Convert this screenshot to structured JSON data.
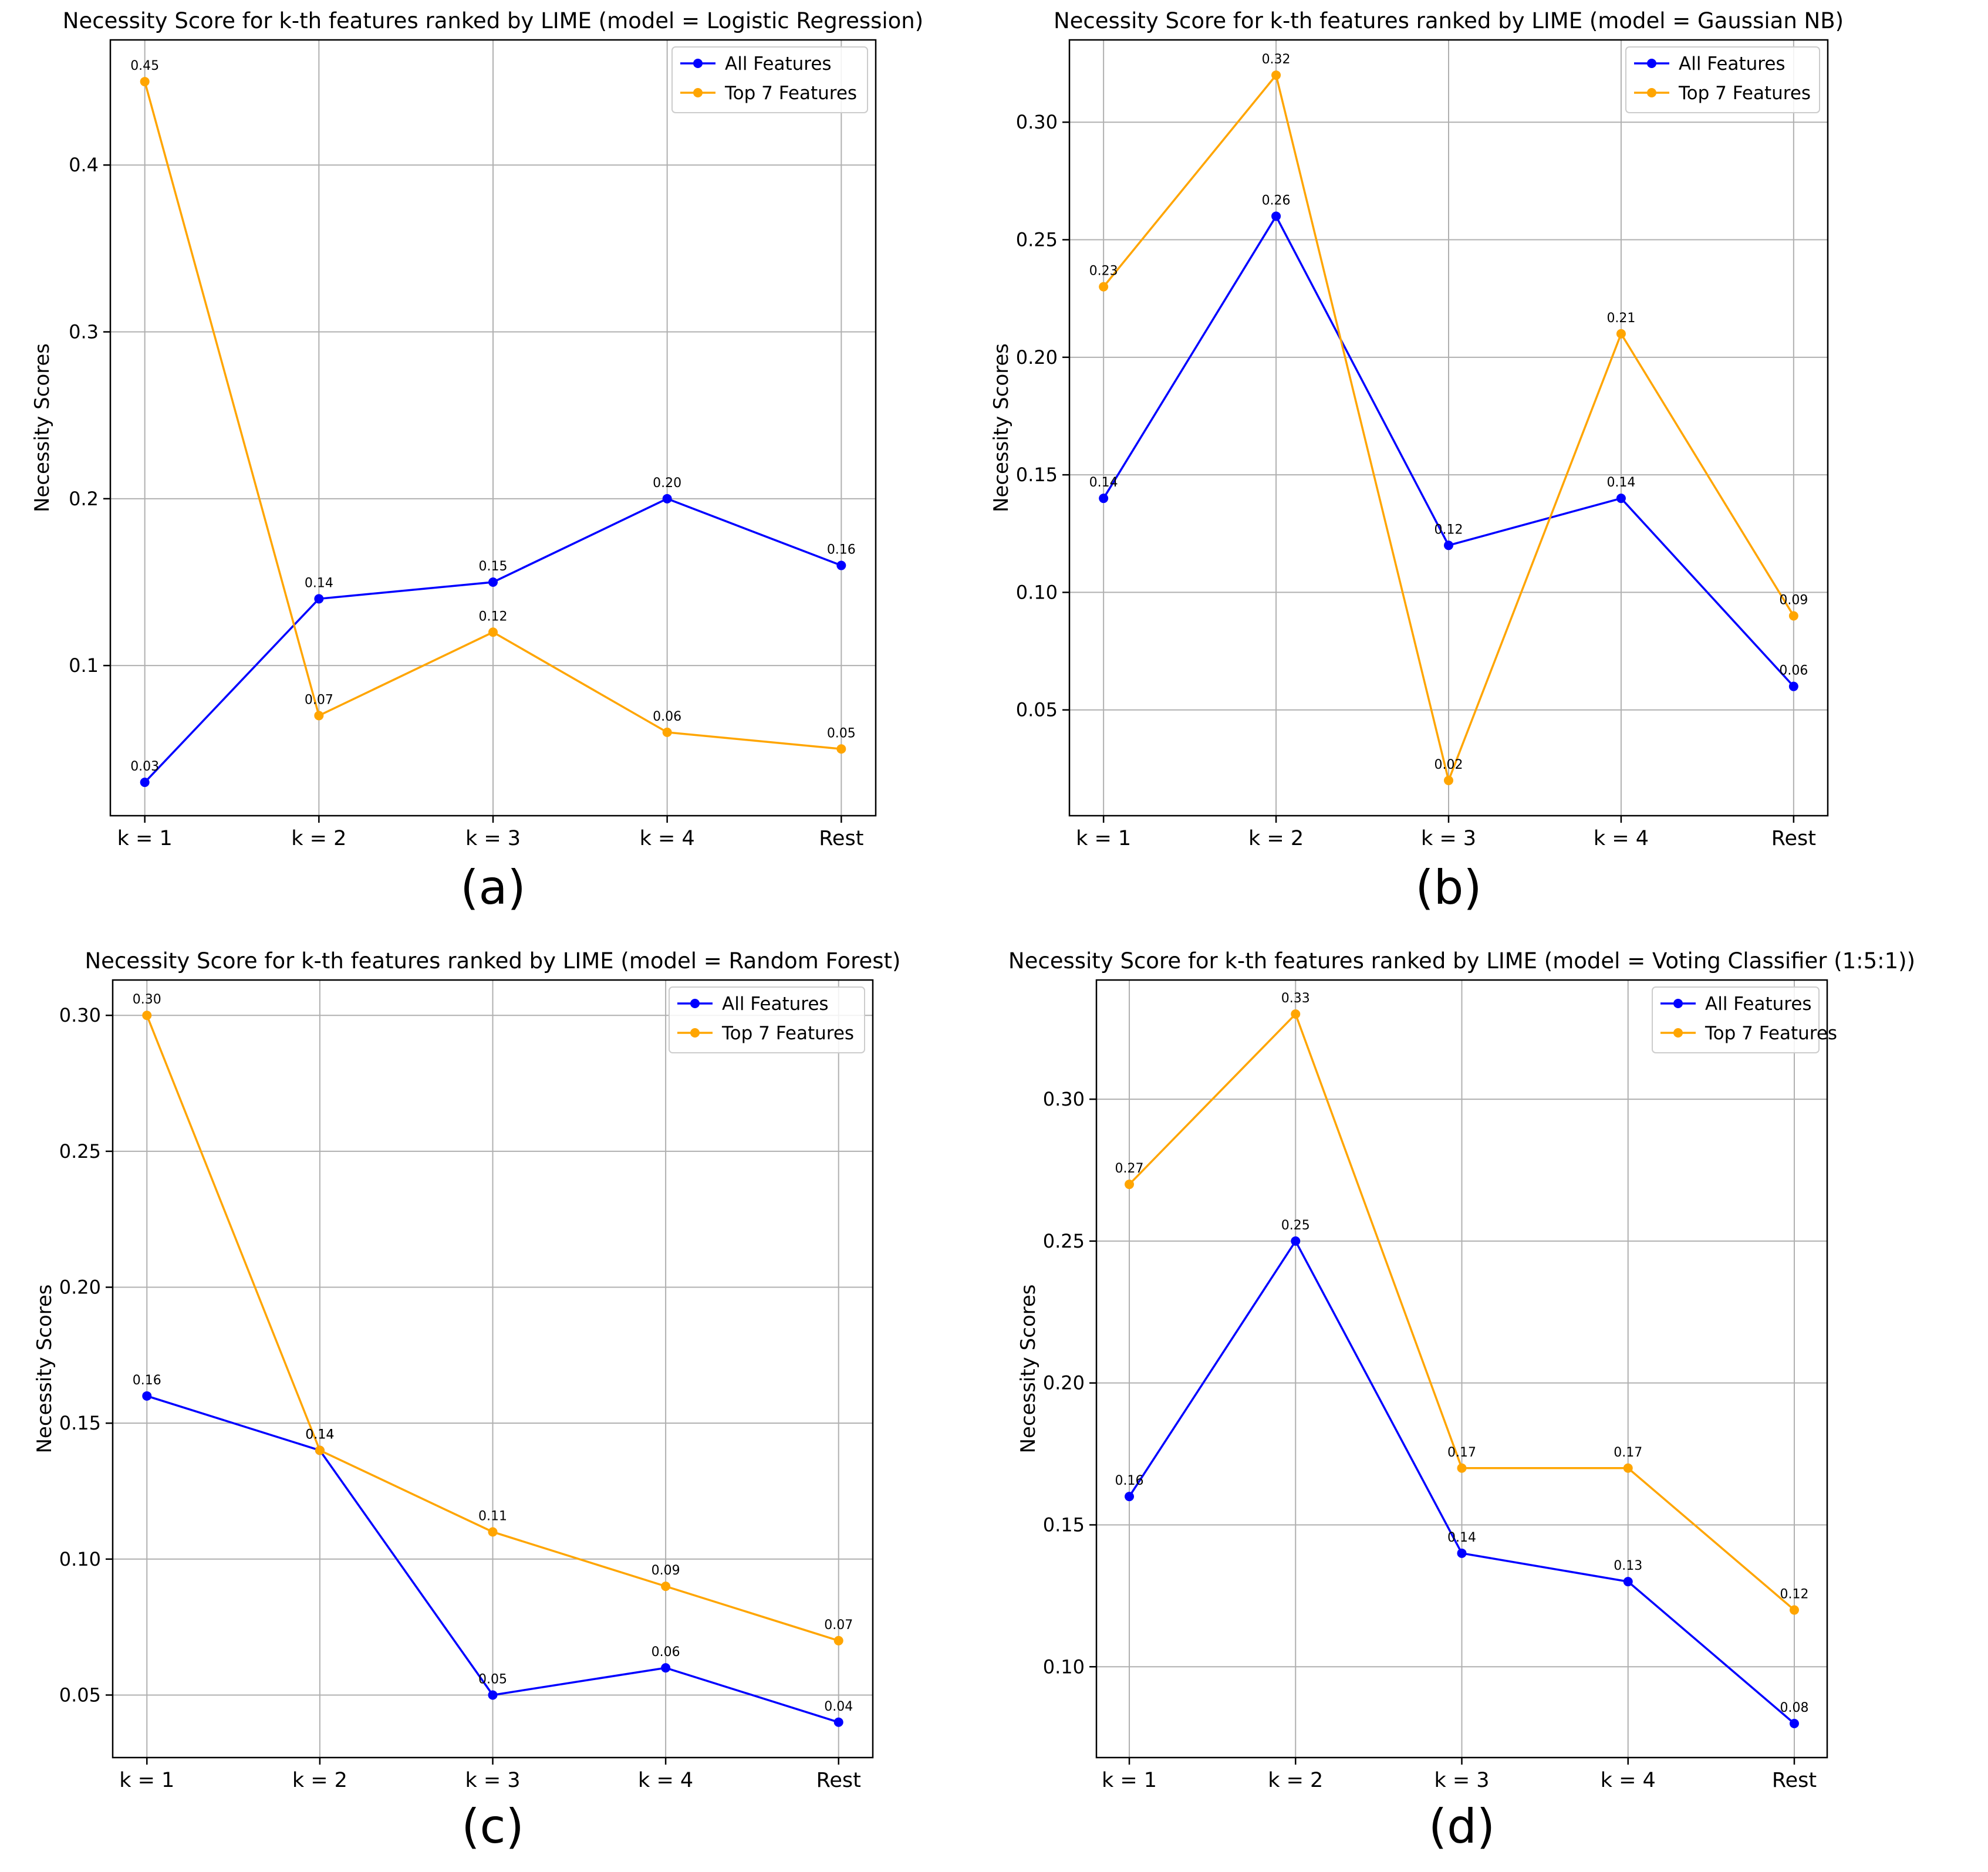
{
  "chart_data": [
    {
      "type": "line",
      "panel_label": "(a)",
      "title": "Necessity Score for k-th features ranked by LIME (model = Logistic Regression)",
      "xlabel": "",
      "ylabel": "Necessity Scores",
      "categories": [
        "k = 1",
        "k = 2",
        "k = 3",
        "k = 4",
        "Rest"
      ],
      "ylim": [
        0.01,
        0.475
      ],
      "yticks": [
        0.1,
        0.2,
        0.3,
        0.4
      ],
      "ytick_labels": [
        "0.1",
        "0.2",
        "0.3",
        "0.4"
      ],
      "grid": true,
      "legend": "top-right",
      "series": [
        {
          "name": "All Features",
          "color": "#0000ff",
          "values": [
            0.03,
            0.14,
            0.15,
            0.2,
            0.16
          ],
          "labels": [
            "0.03",
            "0.14",
            "0.15",
            "0.20",
            "0.16"
          ]
        },
        {
          "name": "Top 7 Features",
          "color": "#ffa500",
          "values": [
            0.45,
            0.07,
            0.12,
            0.06,
            0.05
          ],
          "labels": [
            "0.45",
            "0.07",
            "0.12",
            "0.06",
            "0.05"
          ]
        }
      ]
    },
    {
      "type": "line",
      "panel_label": "(b)",
      "title": "Necessity Score for k-th features ranked by LIME (model = Gaussian NB)",
      "xlabel": "",
      "ylabel": "Necessity Scores",
      "categories": [
        "k = 1",
        "k = 2",
        "k = 3",
        "k = 4",
        "Rest"
      ],
      "ylim": [
        0.005,
        0.335
      ],
      "yticks": [
        0.05,
        0.1,
        0.15,
        0.2,
        0.25,
        0.3
      ],
      "ytick_labels": [
        "0.05",
        "0.10",
        "0.15",
        "0.20",
        "0.25",
        "0.30"
      ],
      "grid": true,
      "legend": "top-right",
      "series": [
        {
          "name": "All Features",
          "color": "#0000ff",
          "values": [
            0.14,
            0.26,
            0.12,
            0.14,
            0.06
          ],
          "labels": [
            "0.14",
            "0.26",
            "0.12",
            "0.14",
            "0.06"
          ]
        },
        {
          "name": "Top 7 Features",
          "color": "#ffa500",
          "values": [
            0.23,
            0.32,
            0.02,
            0.21,
            0.09
          ],
          "labels": [
            "0.23",
            "0.32",
            "0.02",
            "0.21",
            "0.09"
          ]
        }
      ]
    },
    {
      "type": "line",
      "panel_label": "(c)",
      "title": "Necessity Score for k-th features ranked by LIME (model = Random Forest)",
      "xlabel": "",
      "ylabel": "Necessity Scores",
      "categories": [
        "k = 1",
        "k = 2",
        "k = 3",
        "k = 4",
        "Rest"
      ],
      "ylim": [
        0.027,
        0.313
      ],
      "yticks": [
        0.05,
        0.1,
        0.15,
        0.2,
        0.25,
        0.3
      ],
      "ytick_labels": [
        "0.05",
        "0.10",
        "0.15",
        "0.20",
        "0.25",
        "0.30"
      ],
      "grid": true,
      "legend": "top-right",
      "series": [
        {
          "name": "All Features",
          "color": "#0000ff",
          "values": [
            0.16,
            0.14,
            0.05,
            0.06,
            0.04
          ],
          "labels": [
            "0.16",
            "0.14",
            "0.05",
            "0.06",
            "0.04"
          ]
        },
        {
          "name": "Top 7 Features",
          "color": "#ffa500",
          "values": [
            0.3,
            0.14,
            0.11,
            0.09,
            0.07
          ],
          "labels": [
            "0.30",
            "0.14",
            "0.11",
            "0.09",
            "0.07"
          ]
        }
      ]
    },
    {
      "type": "line",
      "panel_label": "(d)",
      "title": "Necessity Score for k-th features ranked by LIME (model = Voting Classifier (1:5:1))",
      "xlabel": "",
      "ylabel": "Necessity Scores",
      "categories": [
        "k = 1",
        "k = 2",
        "k = 3",
        "k = 4",
        "Rest"
      ],
      "ylim": [
        0.068,
        0.342
      ],
      "yticks": [
        0.1,
        0.15,
        0.2,
        0.25,
        0.3
      ],
      "ytick_labels": [
        "0.10",
        "0.15",
        "0.20",
        "0.25",
        "0.30"
      ],
      "grid": true,
      "legend": "top-right",
      "series": [
        {
          "name": "All Features",
          "color": "#0000ff",
          "values": [
            0.16,
            0.25,
            0.14,
            0.13,
            0.08
          ],
          "labels": [
            "0.16",
            "0.25",
            "0.14",
            "0.13",
            "0.08"
          ]
        },
        {
          "name": "Top 7 Features",
          "color": "#ffa500",
          "values": [
            0.27,
            0.33,
            0.17,
            0.17,
            0.12
          ],
          "labels": [
            "0.27",
            "0.33",
            "0.17",
            "0.17",
            "0.12"
          ]
        }
      ]
    }
  ]
}
